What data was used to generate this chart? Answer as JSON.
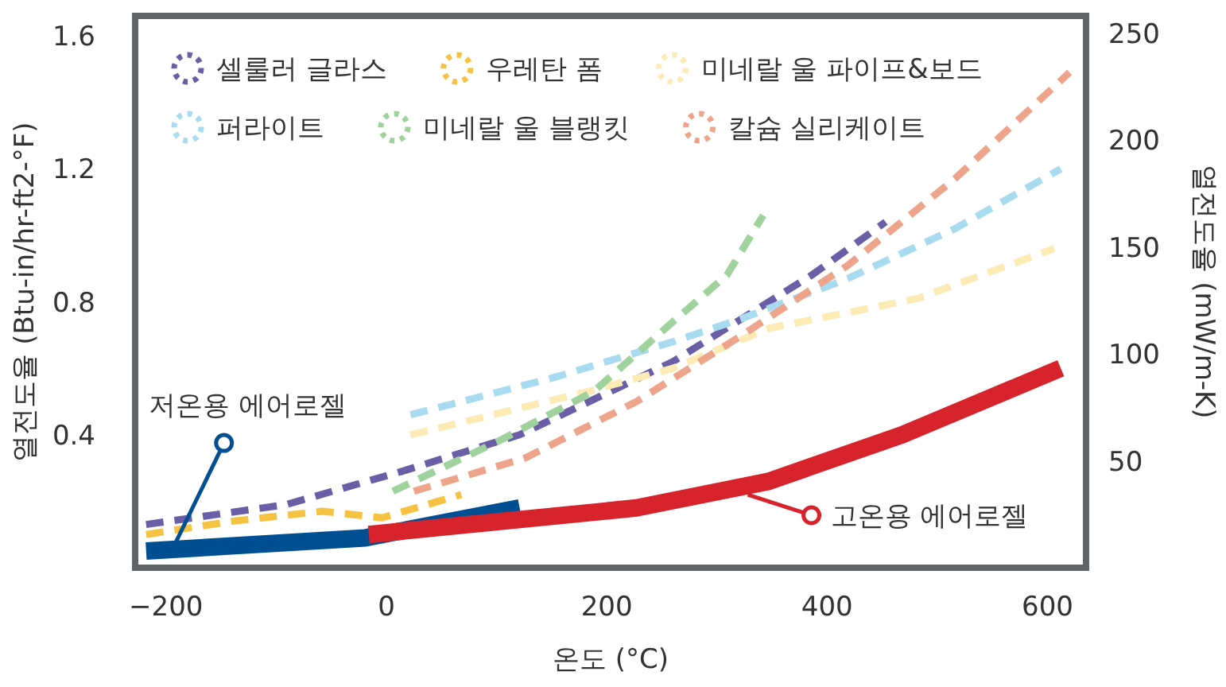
{
  "chart_data": {
    "type": "line",
    "xlabel": "온도 (°C)",
    "ylabel": "열전도율 (Btu-in/hr-ft2-°F)",
    "y2label": "열전도율 (mW/m-K)",
    "xlim": [
      -228,
      635
    ],
    "xticks": [
      -200,
      0,
      200,
      400,
      600
    ],
    "ylim": [
      0,
      1.66
    ],
    "yticks": [
      0.4,
      0.8,
      1.2,
      1.6
    ],
    "y2lim": [
      0,
      258
    ],
    "y2ticks": [
      50,
      100,
      150,
      200,
      250
    ],
    "legend": "top left",
    "grid": false,
    "series": [
      {
        "name": "셀룰러 글라스",
        "color": "#6a5fa6",
        "line_style": "dashed",
        "x": [
          -218,
          -91,
          14,
          121,
          260,
          386,
          453
        ],
        "values": [
          0.13,
          0.19,
          0.29,
          0.4,
          0.62,
          0.88,
          1.04
        ]
      },
      {
        "name": "우레탄 폼",
        "color": "#f6c242",
        "line_style": "dashed",
        "x": [
          -218,
          -139,
          -58,
          -4,
          68
        ],
        "values": [
          0.1,
          0.14,
          0.17,
          0.15,
          0.22
        ]
      },
      {
        "name": "미네랄 울 파이프&보드",
        "color": "#fcebb5",
        "line_style": "dashed",
        "x": [
          22,
          183,
          260,
          347,
          482,
          606
        ],
        "values": [
          0.4,
          0.53,
          0.6,
          0.72,
          0.81,
          0.96
        ]
      },
      {
        "name": "퍼라이트",
        "color": "#a8dbef",
        "line_style": "dashed",
        "x": [
          22,
          150,
          260,
          323,
          419,
          516,
          612
        ],
        "values": [
          0.46,
          0.57,
          0.68,
          0.75,
          0.87,
          1.02,
          1.2
        ]
      },
      {
        "name": "미네랄 울 블랭킷",
        "color": "#9fd29d",
        "line_style": "dashed",
        "x": [
          6,
          101,
          188,
          260,
          309,
          342
        ],
        "values": [
          0.23,
          0.38,
          0.53,
          0.74,
          0.88,
          1.06
        ]
      },
      {
        "name": "칼슘 실리케이트",
        "color": "#eea48a",
        "line_style": "dashed",
        "x": [
          25,
          126,
          227,
          323,
          419,
          516,
          620
        ],
        "values": [
          0.23,
          0.33,
          0.5,
          0.7,
          0.91,
          1.17,
          1.49
        ]
      },
      {
        "color": "#004f93",
        "line_style": "solid",
        "x": [
          -218,
          -19,
          121
        ],
        "values": [
          0.05,
          0.09,
          0.18
        ]
      },
      {
        "color": "#d7242c",
        "line_style": "solid",
        "x": [
          -16,
          227,
          347,
          468,
          612
        ],
        "values": [
          0.1,
          0.18,
          0.26,
          0.4,
          0.6
        ]
      }
    ],
    "annotations": [
      {
        "text": "저온용 에어로젤",
        "x": -195,
        "y": 0.05
      },
      {
        "text": "고온용 에어로젤",
        "x": 328,
        "y": 0.22
      }
    ]
  }
}
